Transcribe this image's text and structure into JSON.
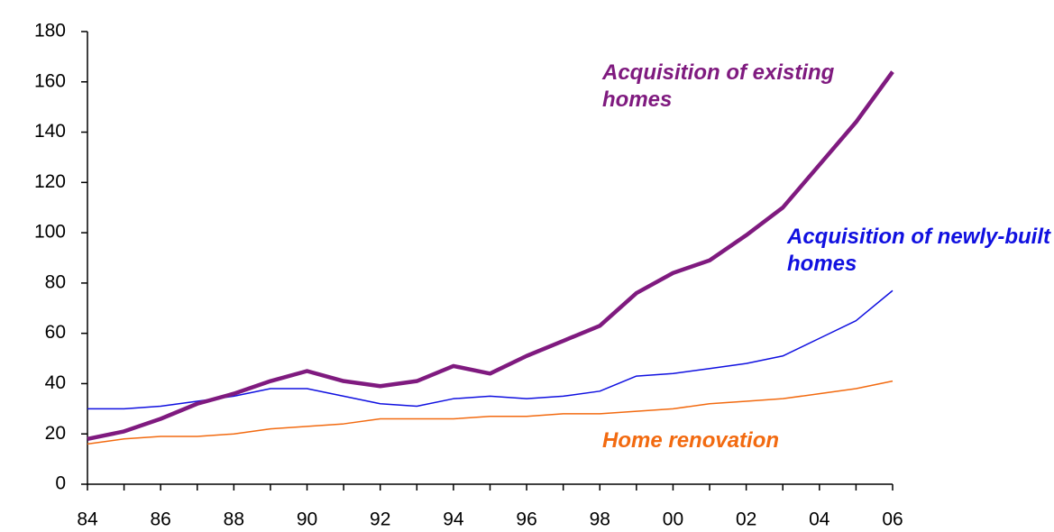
{
  "chart_data": {
    "type": "line",
    "categories": [
      "84",
      null,
      "86",
      null,
      "88",
      null,
      "90",
      null,
      "92",
      null,
      "94",
      null,
      "96",
      null,
      "98",
      null,
      "00",
      null,
      "02",
      null,
      "04",
      null,
      "06"
    ],
    "series": [
      {
        "name": "Acquisition of existing homes",
        "color": "#7f1a7f",
        "width": 4.5,
        "values": [
          18,
          21,
          26,
          32,
          36,
          41,
          45,
          41,
          39,
          41,
          47,
          44,
          51,
          57,
          63,
          76,
          84,
          89,
          99,
          110,
          127,
          144,
          164
        ]
      },
      {
        "name": "Acquisition of newly-built homes",
        "color": "#1010e0",
        "width": 1.5,
        "values": [
          30,
          30,
          31,
          33,
          35,
          38,
          38,
          35,
          32,
          31,
          34,
          35,
          34,
          35,
          37,
          43,
          44,
          46,
          48,
          51,
          58,
          65,
          77
        ]
      },
      {
        "name": "Home renovation",
        "color": "#f26a10",
        "width": 1.5,
        "values": [
          16,
          18,
          19,
          19,
          20,
          22,
          23,
          24,
          26,
          26,
          26,
          27,
          27,
          28,
          28,
          29,
          30,
          32,
          33,
          34,
          36,
          38,
          41
        ]
      }
    ],
    "ylim": [
      0,
      180
    ],
    "yticks": [
      0,
      20,
      40,
      60,
      80,
      100,
      120,
      140,
      160,
      180
    ]
  }
}
